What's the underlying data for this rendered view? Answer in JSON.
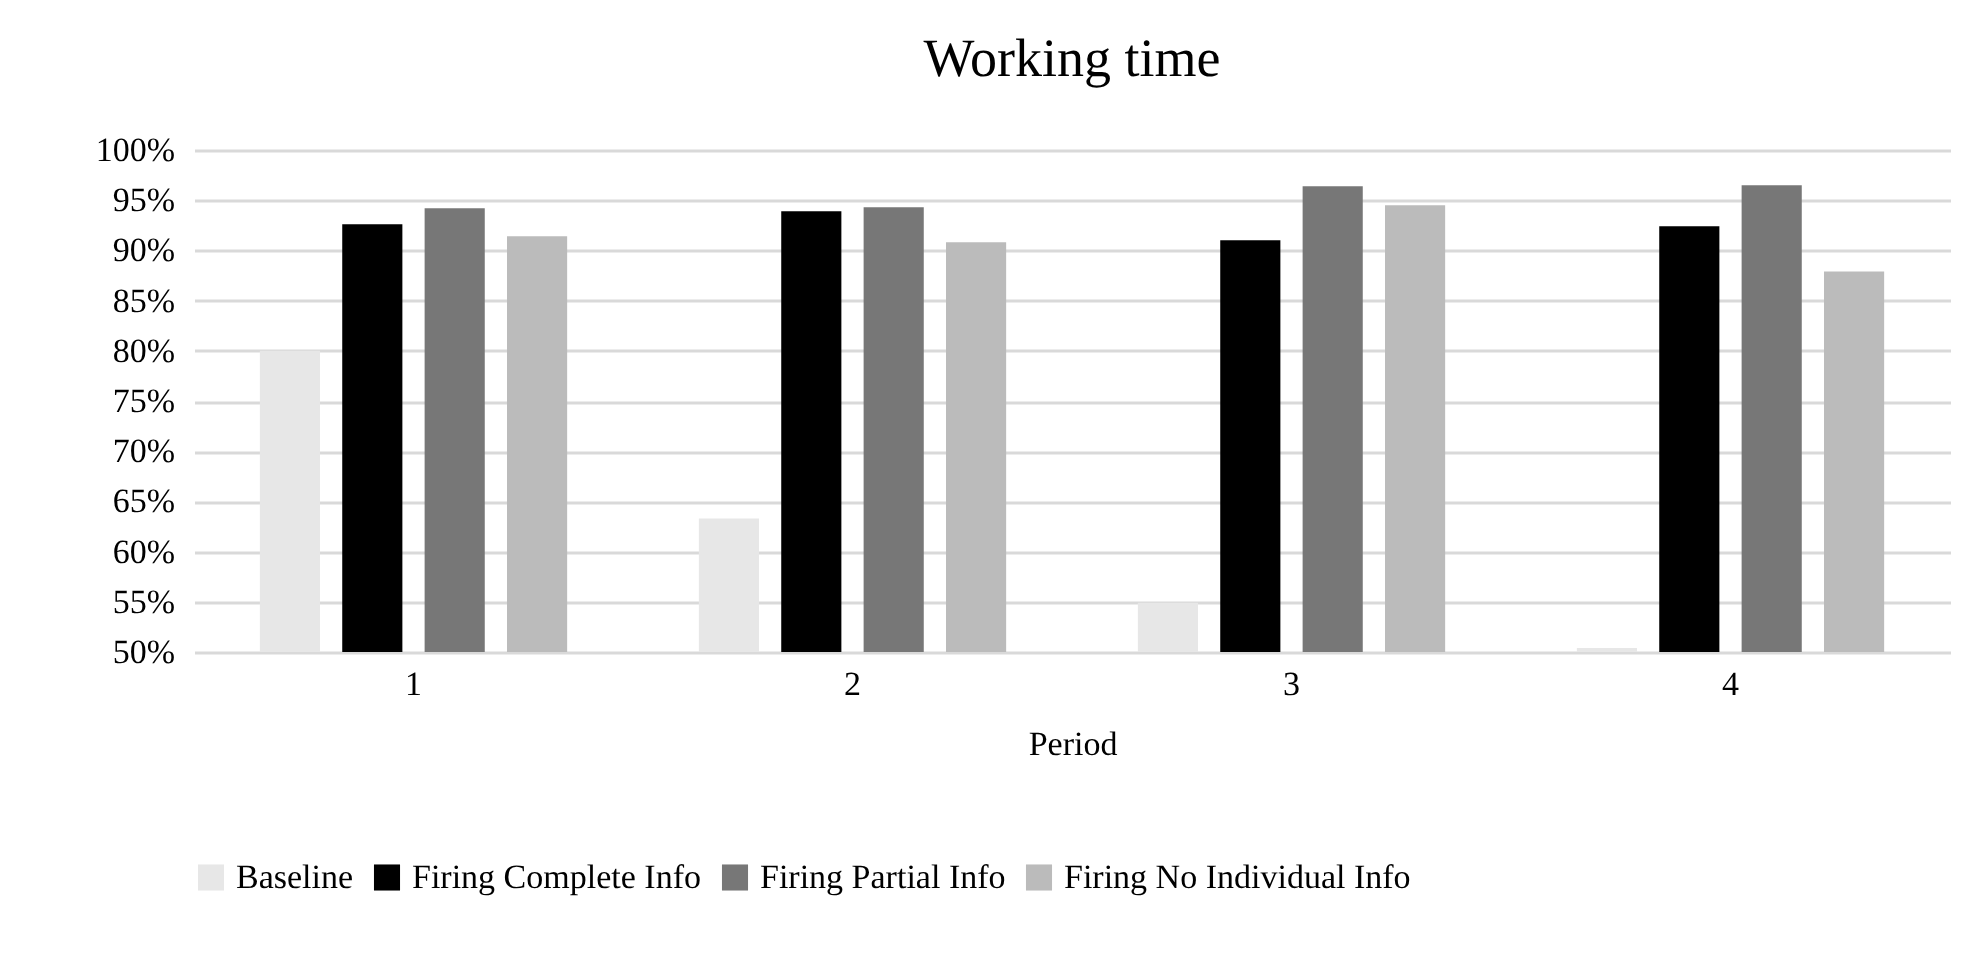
{
  "chart_data": {
    "type": "bar",
    "title": "Working time",
    "xlabel": "Period",
    "categories": [
      "1",
      "2",
      "3",
      "4"
    ],
    "series": [
      {
        "name": "Baseline",
        "color": "#e7e7e7",
        "values": [
          80.0,
          63.3,
          54.9,
          50.4
        ]
      },
      {
        "name": "Firing Complete Info",
        "color": "#000000",
        "values": [
          92.6,
          93.9,
          91.0,
          92.4
        ]
      },
      {
        "name": "Firing Partial Info",
        "color": "#777777",
        "values": [
          94.2,
          94.3,
          96.4,
          96.5
        ]
      },
      {
        "name": "Firing No Individual Info",
        "color": "#bbbbbb",
        "values": [
          91.4,
          90.8,
          94.5,
          87.9
        ]
      }
    ],
    "ylim": [
      50,
      100
    ],
    "yticks": [
      {
        "value": 50,
        "label": "50%"
      },
      {
        "value": 55,
        "label": "55%"
      },
      {
        "value": 60,
        "label": "60%"
      },
      {
        "value": 65,
        "label": "65%"
      },
      {
        "value": 70,
        "label": "70%"
      },
      {
        "value": 75,
        "label": "75%"
      },
      {
        "value": 80,
        "label": "80%"
      },
      {
        "value": 85,
        "label": "85%"
      },
      {
        "value": 90,
        "label": "90%"
      },
      {
        "value": 95,
        "label": "95%"
      },
      {
        "value": 100,
        "label": "100%"
      }
    ],
    "grid": "y",
    "legend": "bottom"
  }
}
